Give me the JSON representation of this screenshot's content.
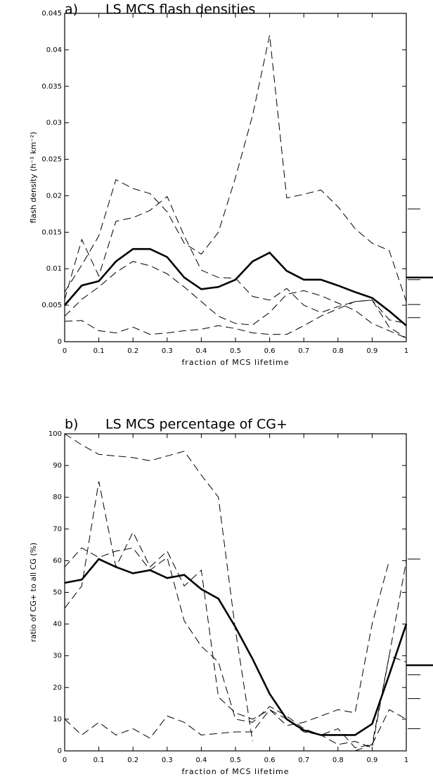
{
  "chart_data": [
    {
      "type": "line",
      "panel": "a)",
      "title": "LS MCS flash densities",
      "xlabel": "fraction of MCS lifetime",
      "ylabel": "flash density (h⁻¹ km⁻²)",
      "x": [
        0,
        0.05,
        0.1,
        0.15,
        0.2,
        0.25,
        0.3,
        0.35,
        0.4,
        0.45,
        0.5,
        0.55,
        0.6,
        0.65,
        0.7,
        0.75,
        0.8,
        0.85,
        0.9,
        0.95,
        1
      ],
      "xlim": [
        0,
        1
      ],
      "xticks": [
        0,
        0.1,
        0.2,
        0.3,
        0.4,
        0.5,
        0.6,
        0.7,
        0.8,
        0.9,
        1
      ],
      "ylim": [
        0,
        0.045
      ],
      "yticks": [
        0,
        0.005,
        0.01,
        0.015,
        0.02,
        0.025,
        0.03,
        0.035,
        0.04,
        0.045
      ],
      "series": [
        {
          "color": "#000000",
          "dash": false,
          "mean": 0.0088,
          "values": [
            0.005,
            0.0077,
            0.0083,
            0.011,
            0.0127,
            0.0127,
            0.0116,
            0.0088,
            0.0072,
            0.0075,
            0.0085,
            0.011,
            0.0122,
            0.0097,
            0.0085,
            0.0085,
            0.0077,
            0.0068,
            0.006,
            0.0042,
            0.0022
          ]
        },
        {
          "color": "#000000",
          "dash": true,
          "mean": 0.0182,
          "values": [
            0.0068,
            0.0105,
            0.0145,
            0.0222,
            0.021,
            0.0203,
            0.0178,
            0.0135,
            0.012,
            0.015,
            0.0225,
            0.031,
            0.042,
            0.0197,
            0.0202,
            0.0208,
            0.0185,
            0.0155,
            0.0135,
            0.0125,
            0.0055
          ]
        },
        {
          "color": "#000000",
          "dash": true,
          "mean": 0.0085,
          "values": [
            0.0058,
            0.014,
            0.009,
            0.0165,
            0.017,
            0.018,
            0.0199,
            0.0145,
            0.0098,
            0.0088,
            0.0087,
            0.0062,
            0.0057,
            0.0073,
            0.005,
            0.004,
            0.0048,
            0.0055,
            0.0057,
            0.003,
            0.0025
          ]
        },
        {
          "color": "#000000",
          "dash": true,
          "mean": 0.0051,
          "values": [
            0.0035,
            0.0058,
            0.0075,
            0.0095,
            0.011,
            0.0104,
            0.0093,
            0.0075,
            0.0055,
            0.0035,
            0.0025,
            0.0023,
            0.004,
            0.0065,
            0.007,
            0.0063,
            0.0053,
            0.0043,
            0.0025,
            0.0015,
            0.0005
          ]
        },
        {
          "color": "#000000",
          "dash": true,
          "mean": 0.0033,
          "values": [
            0.0028,
            0.0029,
            0.0015,
            0.0012,
            0.002,
            0.001,
            0.0012,
            0.0015,
            0.0017,
            0.0022,
            0.0018,
            0.0012,
            0.001,
            0.001,
            0.0022,
            0.0035,
            0.0045,
            0.0055,
            0.0057,
            0.002,
            0.0005
          ]
        }
      ]
    },
    {
      "type": "line",
      "panel": "b)",
      "title": "LS MCS percentage of CG+",
      "xlabel": "fraction of MCS lifetime",
      "ylabel": "ratio of CG+ to all CG (%)",
      "x": [
        0,
        0.05,
        0.1,
        0.15,
        0.2,
        0.25,
        0.3,
        0.35,
        0.4,
        0.45,
        0.5,
        0.55,
        0.6,
        0.65,
        0.7,
        0.75,
        0.8,
        0.85,
        0.9,
        0.95,
        1
      ],
      "xlim": [
        0,
        1
      ],
      "xticks": [
        0,
        0.1,
        0.2,
        0.3,
        0.4,
        0.5,
        0.6,
        0.7,
        0.8,
        0.9,
        1
      ],
      "ylim": [
        0,
        100
      ],
      "yticks": [
        0,
        10,
        20,
        30,
        40,
        50,
        60,
        70,
        80,
        90,
        100
      ],
      "series": [
        {
          "color": "#000000",
          "dash": false,
          "mean": 27,
          "values": [
            53,
            54,
            60.5,
            58,
            56,
            57,
            54.5,
            55.5,
            51,
            48,
            39,
            29,
            18,
            10,
            6.5,
            5,
            5,
            5,
            8.5,
            24,
            40
          ]
        },
        {
          "color": "#000000",
          "dash": true,
          "mean": 60.5,
          "values": [
            100,
            96.5,
            93.5,
            93,
            92.5,
            91.5,
            93,
            94.5,
            87,
            80,
            38,
            3,
            null,
            null,
            null,
            null,
            null,
            0,
            2,
            30,
            60
          ]
        },
        {
          "color": "#000000",
          "dash": true,
          "mean": 24,
          "values": [
            45,
            52,
            85,
            58,
            69,
            58,
            63,
            52,
            57,
            17,
            12,
            10,
            13,
            8,
            9,
            11,
            13,
            12,
            40,
            60,
            null
          ]
        },
        {
          "color": "#000000",
          "dash": true,
          "mean": 16.5,
          "values": [
            58,
            64,
            61,
            63,
            64,
            57,
            61,
            41,
            33,
            28,
            10,
            9,
            14,
            11,
            7,
            5,
            2,
            3,
            1,
            30,
            28
          ]
        },
        {
          "color": "#000000",
          "dash": true,
          "mean": 7,
          "values": [
            10,
            5,
            9,
            5,
            7,
            4,
            11,
            9,
            5,
            5.5,
            6,
            6,
            13,
            10,
            6,
            5,
            7,
            1,
            2,
            13,
            10
          ]
        }
      ]
    }
  ]
}
